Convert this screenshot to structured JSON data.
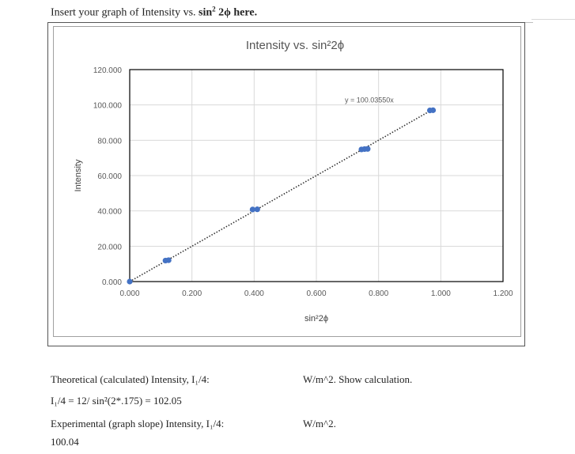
{
  "prompt": {
    "prefix": "Insert your graph of Intensity vs. ",
    "sin": "sin",
    "sup": "2",
    "suffix": " 2ϕ here."
  },
  "chart_data": {
    "type": "scatter",
    "title": "Intensity vs. sin²2ϕ",
    "xlabel": "sin²2ϕ",
    "ylabel": "Intensity",
    "xlim": [
      0,
      1.2
    ],
    "ylim": [
      0,
      120
    ],
    "x_ticks": [
      "0.000",
      "0.200",
      "0.400",
      "0.600",
      "0.800",
      "1.000",
      "1.200"
    ],
    "y_ticks": [
      "0.000",
      "20.000",
      "40.000",
      "60.000",
      "80.000",
      "100.000",
      "120.000"
    ],
    "series": [
      {
        "points": [
          [
            0.0,
            0.0
          ],
          [
            0.115,
            11.9
          ],
          [
            0.125,
            12.1
          ],
          [
            0.395,
            40.8
          ],
          [
            0.41,
            40.9
          ],
          [
            0.745,
            74.8
          ],
          [
            0.755,
            75.0
          ],
          [
            0.765,
            75.1
          ],
          [
            0.965,
            96.9
          ],
          [
            0.975,
            97.0
          ]
        ],
        "color": "#4472C4"
      }
    ],
    "trendline": {
      "slope": 100.0355,
      "label": "y = 100.03550x",
      "style": "dotted"
    },
    "grid": true
  },
  "answers": {
    "theoretical_label": "Theoretical (calculated) Intensity, I₁/4:",
    "theoretical_unit": "W/m^2. Show calculation.",
    "calc_line": "I₁/4 = 12/ sin²(2*.175) = 102.05",
    "experimental_label": "Experimental (graph slope) Intensity, I₁/4:",
    "experimental_unit": "W/m^2.",
    "experimental_value": "100.04"
  }
}
